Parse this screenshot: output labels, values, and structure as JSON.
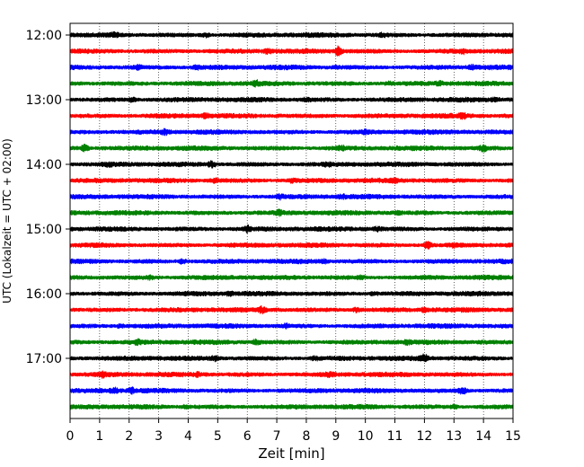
{
  "chart_data": {
    "type": "line",
    "xlabel": "Zeit  [min]",
    "ylabel": "UTC (Lokalzeit = UTC + 02:00)",
    "xlim": [
      0,
      15
    ],
    "x_ticks": [
      "0",
      "1",
      "2",
      "3",
      "4",
      "5",
      "6",
      "7",
      "8",
      "9",
      "10",
      "11",
      "12",
      "13",
      "14",
      "15"
    ],
    "y_ticks": [
      "12:00",
      "13:00",
      "14:00",
      "15:00",
      "16:00",
      "17:00"
    ],
    "grid_x": "dotted",
    "trace_interval_minutes": 15,
    "traces_start": "12:00",
    "traces_end": "17:45",
    "trace_colors": [
      "#000000",
      "#ff0000",
      "#0000ff",
      "#008000"
    ],
    "series": [
      {
        "start": "12:00",
        "color": "#000000",
        "events": [
          [
            1.5,
            1.6
          ],
          [
            4.6,
            1.6
          ],
          [
            10.6,
            1.6
          ]
        ]
      },
      {
        "start": "12:15",
        "color": "#ff0000",
        "events": [
          [
            6.7,
            1.6
          ],
          [
            9.1,
            3.0
          ],
          [
            13.3,
            1.7
          ]
        ]
      },
      {
        "start": "12:30",
        "color": "#0000ff",
        "events": [
          [
            2.3,
            1.6
          ],
          [
            4.3,
            1.5
          ],
          [
            9.0,
            1.4
          ],
          [
            13.6,
            1.7
          ]
        ]
      },
      {
        "start": "12:45",
        "color": "#008000",
        "events": [
          [
            6.3,
            1.8
          ],
          [
            10.8,
            1.5
          ],
          [
            12.5,
            1.7
          ]
        ]
      },
      {
        "start": "13:00",
        "color": "#000000",
        "events": [
          [
            2.1,
            1.6
          ],
          [
            8.0,
            1.5
          ],
          [
            14.4,
            1.5
          ]
        ]
      },
      {
        "start": "13:15",
        "color": "#ff0000",
        "events": [
          [
            4.6,
            1.6
          ],
          [
            13.3,
            1.8
          ]
        ]
      },
      {
        "start": "13:30",
        "color": "#0000ff",
        "events": [
          [
            3.2,
            1.8
          ],
          [
            10.0,
            1.5
          ]
        ]
      },
      {
        "start": "13:45",
        "color": "#008000",
        "events": [
          [
            0.5,
            2.2
          ],
          [
            9.2,
            1.6
          ],
          [
            14.0,
            2.0
          ]
        ]
      },
      {
        "start": "14:00",
        "color": "#000000",
        "events": [
          [
            1.3,
            1.4
          ],
          [
            4.8,
            2.0
          ],
          [
            8.7,
            1.5
          ]
        ]
      },
      {
        "start": "14:15",
        "color": "#ff0000",
        "events": [
          [
            4.9,
            1.7
          ],
          [
            7.5,
            1.5
          ],
          [
            11.0,
            1.5
          ]
        ]
      },
      {
        "start": "14:30",
        "color": "#0000ff",
        "events": [
          [
            7.1,
            1.7
          ],
          [
            9.2,
            1.5
          ]
        ]
      },
      {
        "start": "14:45",
        "color": "#008000",
        "events": [
          [
            7.1,
            1.8
          ],
          [
            11.1,
            1.5
          ]
        ]
      },
      {
        "start": "15:00",
        "color": "#000000",
        "events": [
          [
            6.0,
            2.0
          ],
          [
            10.4,
            1.6
          ]
        ]
      },
      {
        "start": "15:15",
        "color": "#ff0000",
        "events": [
          [
            12.1,
            2.4
          ],
          [
            13.0,
            1.6
          ]
        ]
      },
      {
        "start": "15:30",
        "color": "#0000ff",
        "events": [
          [
            3.8,
            1.7
          ],
          [
            8.6,
            1.5
          ]
        ]
      },
      {
        "start": "15:45",
        "color": "#008000",
        "events": [
          [
            2.7,
            1.5
          ],
          [
            9.8,
            1.5
          ]
        ]
      },
      {
        "start": "16:00",
        "color": "#000000",
        "events": [
          [
            5.4,
            1.5
          ],
          [
            10.3,
            1.5
          ]
        ]
      },
      {
        "start": "16:15",
        "color": "#ff0000",
        "events": [
          [
            6.5,
            2.0
          ],
          [
            9.7,
            1.8
          ],
          [
            12.0,
            1.6
          ]
        ]
      },
      {
        "start": "16:30",
        "color": "#0000ff",
        "events": [
          [
            1.7,
            1.5
          ],
          [
            7.3,
            1.6
          ]
        ]
      },
      {
        "start": "16:45",
        "color": "#008000",
        "events": [
          [
            2.3,
            1.8
          ],
          [
            6.3,
            1.8
          ],
          [
            11.4,
            1.5
          ]
        ]
      },
      {
        "start": "17:00",
        "color": "#000000",
        "events": [
          [
            4.9,
            1.7
          ],
          [
            8.3,
            1.6
          ],
          [
            12.0,
            2.2
          ]
        ]
      },
      {
        "start": "17:15",
        "color": "#ff0000",
        "events": [
          [
            1.1,
            1.8
          ],
          [
            4.3,
            1.6
          ],
          [
            8.8,
            1.6
          ]
        ]
      },
      {
        "start": "17:30",
        "color": "#0000ff",
        "events": [
          [
            1.5,
            1.8
          ],
          [
            2.1,
            1.8
          ],
          [
            13.3,
            2.3
          ]
        ]
      },
      {
        "start": "17:45",
        "color": "#008000",
        "events": [
          [
            3.9,
            1.5
          ],
          [
            13.0,
            1.6
          ]
        ]
      }
    ]
  }
}
